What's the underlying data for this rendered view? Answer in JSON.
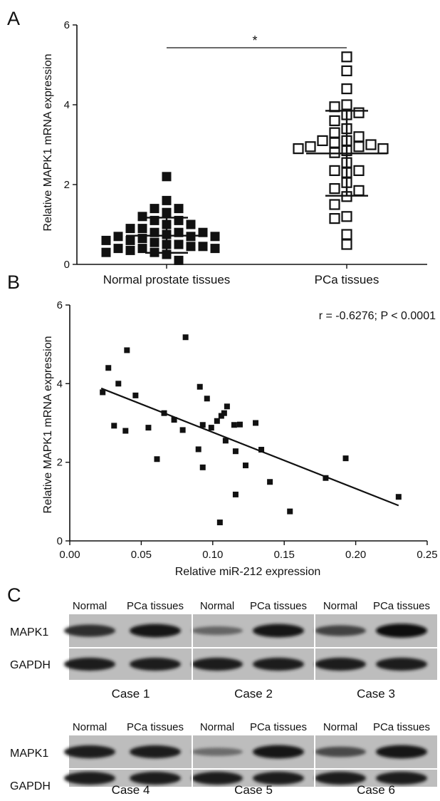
{
  "panels": {
    "A": "A",
    "B": "B",
    "C": "C"
  },
  "chart_data": [
    {
      "panel": "A",
      "type": "scatter",
      "categories": [
        "Normal prostate tissues",
        "PCa tissues"
      ],
      "ylabel": "Relative MAPK1 mRNA expression",
      "xlabel": "",
      "ylim": [
        0,
        6
      ],
      "yticks": [
        "0",
        "2",
        "4",
        "6"
      ],
      "significance": "*",
      "series": [
        {
          "category": "Normal prostate tissues",
          "marker": "filled-square",
          "mean": 0.72,
          "sd_upper": 1.17,
          "sd_lower": 0.29,
          "values": [
            2.2,
            1.6,
            1.4,
            1.4,
            1.3,
            1.2,
            1.1,
            1.1,
            1.0,
            1.0,
            0.9,
            0.9,
            0.8,
            0.8,
            0.8,
            0.75,
            0.7,
            0.7,
            0.7,
            0.65,
            0.6,
            0.6,
            0.55,
            0.5,
            0.5,
            0.45,
            0.45,
            0.4,
            0.4,
            0.4,
            0.35,
            0.3,
            0.3,
            0.25,
            0.1
          ]
        },
        {
          "category": "PCa tissues",
          "marker": "open-square",
          "mean": 2.78,
          "sd_upper": 3.85,
          "sd_lower": 1.72,
          "values": [
            5.2,
            4.85,
            4.4,
            4.0,
            3.95,
            3.8,
            3.75,
            3.6,
            3.4,
            3.3,
            3.2,
            3.1,
            3.1,
            3.05,
            3.0,
            2.95,
            2.95,
            2.9,
            2.9,
            2.85,
            2.8,
            2.55,
            2.35,
            2.35,
            2.3,
            2.05,
            1.9,
            1.85,
            1.7,
            1.5,
            1.2,
            1.15,
            0.75,
            0.5
          ]
        }
      ]
    },
    {
      "panel": "B",
      "type": "scatter",
      "xlabel": "Relative miR-212 expression",
      "ylabel": "Relative MAPK1 mRNA expression",
      "xlim": [
        0,
        0.25
      ],
      "ylim": [
        0,
        6
      ],
      "xticks": [
        "0.00",
        "0.05",
        "0.10",
        "0.15",
        "0.20",
        "0.25"
      ],
      "yticks": [
        "0",
        "2",
        "4",
        "6"
      ],
      "annotation": "r = -0.6276; P < 0.0001",
      "fit_line": {
        "x": [
          0.022,
          0.23
        ],
        "y": [
          3.88,
          0.9
        ]
      },
      "points": [
        {
          "x": 0.023,
          "y": 3.78
        },
        {
          "x": 0.027,
          "y": 4.4
        },
        {
          "x": 0.031,
          "y": 2.93
        },
        {
          "x": 0.034,
          "y": 4.0
        },
        {
          "x": 0.039,
          "y": 2.8
        },
        {
          "x": 0.04,
          "y": 4.85
        },
        {
          "x": 0.046,
          "y": 3.7
        },
        {
          "x": 0.055,
          "y": 2.88
        },
        {
          "x": 0.061,
          "y": 2.08
        },
        {
          "x": 0.066,
          "y": 3.25
        },
        {
          "x": 0.073,
          "y": 3.08
        },
        {
          "x": 0.079,
          "y": 2.82
        },
        {
          "x": 0.081,
          "y": 5.18
        },
        {
          "x": 0.09,
          "y": 2.33
        },
        {
          "x": 0.091,
          "y": 3.92
        },
        {
          "x": 0.093,
          "y": 2.95
        },
        {
          "x": 0.093,
          "y": 1.87
        },
        {
          "x": 0.096,
          "y": 3.62
        },
        {
          "x": 0.099,
          "y": 2.88
        },
        {
          "x": 0.103,
          "y": 3.05
        },
        {
          "x": 0.106,
          "y": 3.18
        },
        {
          "x": 0.108,
          "y": 3.25
        },
        {
          "x": 0.109,
          "y": 2.55
        },
        {
          "x": 0.11,
          "y": 3.42
        },
        {
          "x": 0.105,
          "y": 0.47
        },
        {
          "x": 0.115,
          "y": 2.95
        },
        {
          "x": 0.116,
          "y": 2.28
        },
        {
          "x": 0.116,
          "y": 1.18
        },
        {
          "x": 0.119,
          "y": 2.96
        },
        {
          "x": 0.123,
          "y": 1.92
        },
        {
          "x": 0.13,
          "y": 3.0
        },
        {
          "x": 0.134,
          "y": 2.32
        },
        {
          "x": 0.14,
          "y": 1.5
        },
        {
          "x": 0.154,
          "y": 0.75
        },
        {
          "x": 0.179,
          "y": 1.6
        },
        {
          "x": 0.193,
          "y": 2.1
        },
        {
          "x": 0.23,
          "y": 1.12
        }
      ]
    }
  ],
  "blots": {
    "rows": [
      {
        "headers": [
          "Normal",
          "PCa tissues",
          "Normal",
          "PCa tissues",
          "Normal",
          "PCa tissues"
        ],
        "bands": [
          "MAPK1",
          "GAPDH"
        ],
        "cases": [
          "Case 1",
          "Case 2",
          "Case 3"
        ],
        "mapk1_intensity": [
          0.75,
          0.9,
          0.35,
          0.9,
          0.6,
          0.95
        ],
        "gapdh_intensity": [
          0.85,
          0.85,
          0.85,
          0.85,
          0.85,
          0.85
        ]
      },
      {
        "headers": [
          "Normal",
          "PCa tissues",
          "Normal",
          "PCa tissues",
          "Normal",
          "PCa tissues"
        ],
        "bands": [
          "MAPK1",
          "GAPDH"
        ],
        "cases": [
          "Case 4",
          "Case 5",
          "Case 6"
        ],
        "mapk1_intensity": [
          0.85,
          0.85,
          0.3,
          0.9,
          0.55,
          0.9
        ],
        "gapdh_intensity": [
          0.85,
          0.85,
          0.85,
          0.85,
          0.85,
          0.85
        ]
      }
    ]
  }
}
